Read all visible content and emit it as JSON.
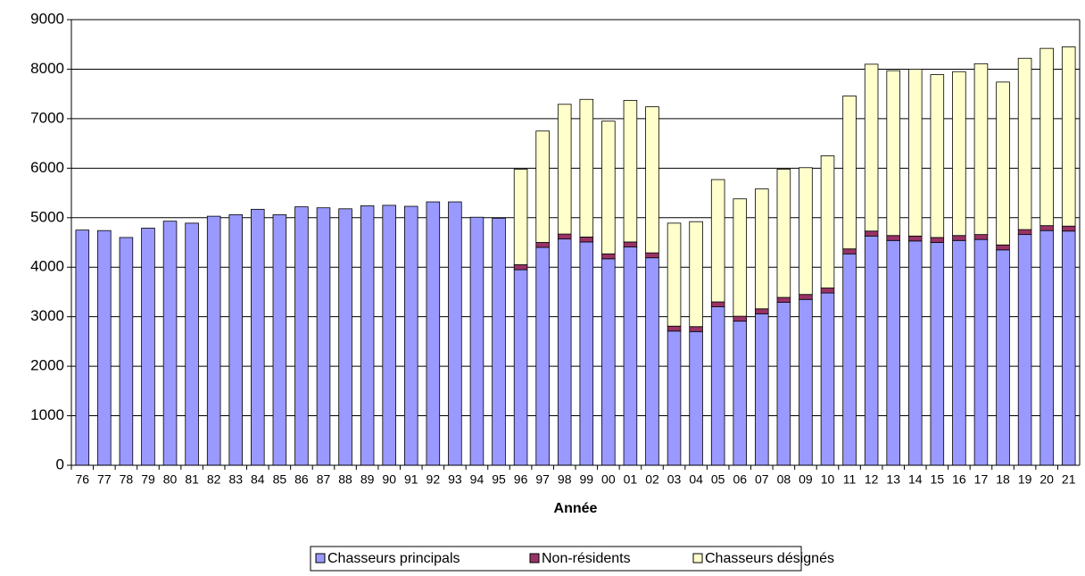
{
  "chart_data": {
    "type": "stacked-bar",
    "x_label": "Année",
    "categories": [
      "76",
      "77",
      "78",
      "79",
      "80",
      "81",
      "82",
      "83",
      "84",
      "85",
      "86",
      "87",
      "88",
      "89",
      "90",
      "91",
      "92",
      "93",
      "94",
      "95",
      "96",
      "97",
      "98",
      "99",
      "00",
      "01",
      "02",
      "03",
      "04",
      "05",
      "06",
      "07",
      "08",
      "09",
      "10",
      "11",
      "12",
      "13",
      "14",
      "15",
      "16",
      "17",
      "18",
      "19",
      "20",
      "21"
    ],
    "series": [
      {
        "name": "Chasseurs principals",
        "color": "#9999ff",
        "values": [
          4750,
          4740,
          4600,
          4790,
          4930,
          4890,
          5030,
          5060,
          5170,
          5060,
          5220,
          5200,
          5180,
          5240,
          5250,
          5230,
          5320,
          5320,
          5010,
          4990,
          3950,
          4400,
          4570,
          4510,
          4170,
          4410,
          4190,
          2710,
          2700,
          3200,
          2910,
          3060,
          3290,
          3350,
          3480,
          4270,
          4630,
          4540,
          4530,
          4500,
          4540,
          4560,
          4350,
          4660,
          4740,
          4730
        ]
      },
      {
        "name": "Non-résidents",
        "color": "#993366",
        "values": [
          null,
          null,
          null,
          null,
          null,
          null,
          null,
          null,
          null,
          null,
          null,
          null,
          null,
          null,
          null,
          null,
          null,
          null,
          null,
          null,
          100,
          100,
          100,
          100,
          100,
          100,
          100,
          100,
          100,
          100,
          100,
          100,
          100,
          100,
          100,
          100,
          100,
          100,
          100,
          100,
          100,
          100,
          100,
          100,
          100,
          100
        ]
      },
      {
        "name": "Chasseurs désignés",
        "color": "#ffffcc",
        "values": [
          null,
          null,
          null,
          null,
          null,
          null,
          null,
          null,
          null,
          null,
          null,
          null,
          null,
          null,
          null,
          null,
          null,
          null,
          null,
          null,
          1930,
          2250,
          2620,
          2780,
          2680,
          2860,
          2950,
          2080,
          2120,
          2470,
          2370,
          2420,
          2590,
          2560,
          2670,
          3090,
          3370,
          3330,
          3370,
          3290,
          3310,
          3450,
          3290,
          3460,
          3580,
          3620
        ]
      }
    ],
    "ylim": [
      0,
      9000
    ],
    "yticks": [
      0,
      1000,
      2000,
      3000,
      4000,
      5000,
      6000,
      7000,
      8000,
      9000
    ],
    "grid": true
  }
}
